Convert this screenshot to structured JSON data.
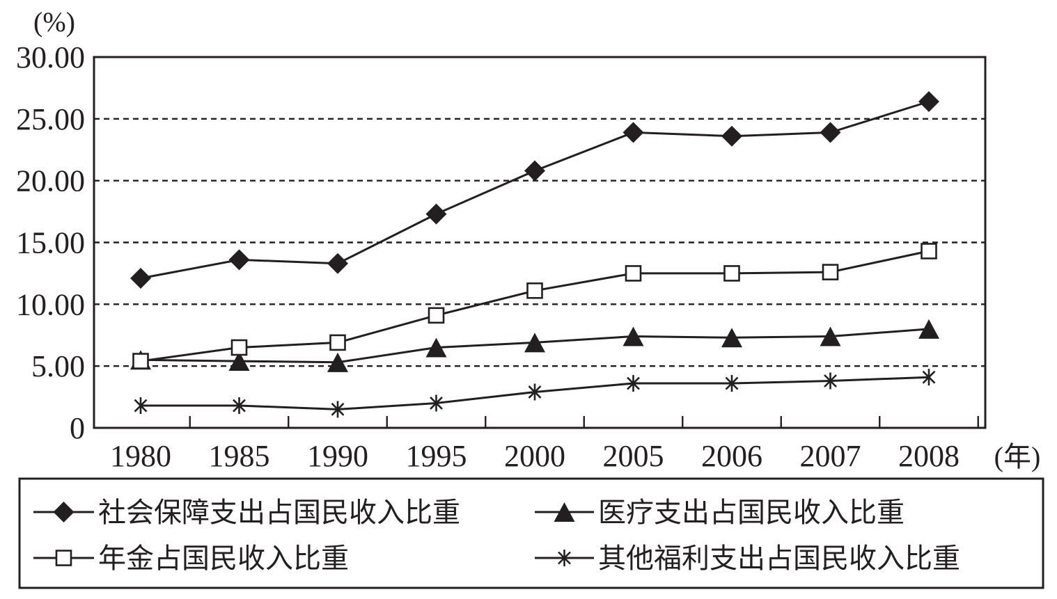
{
  "chart_data": {
    "type": "line",
    "y_unit_label": "(%)",
    "x_unit_label": "(年)",
    "categories": [
      "1980",
      "1985",
      "1990",
      "1995",
      "2000",
      "2005",
      "2006",
      "2007",
      "2008"
    ],
    "ylim": [
      0,
      30
    ],
    "y_ticks": [
      {
        "value": 0,
        "label": "0"
      },
      {
        "value": 5,
        "label": "5.00"
      },
      {
        "value": 10,
        "label": "10.00"
      },
      {
        "value": 15,
        "label": "15.00"
      },
      {
        "value": 20,
        "label": "20.00"
      },
      {
        "value": 25,
        "label": "25.00"
      },
      {
        "value": 30,
        "label": "30.00"
      }
    ],
    "grid": "horizontal dashed",
    "legend_position": "bottom",
    "series": [
      {
        "key": "social-security",
        "name": "社会保障支出占国民收入比重",
        "marker": "filled-diamond",
        "values": [
          12.1,
          13.6,
          13.3,
          17.3,
          20.8,
          23.9,
          23.6,
          23.9,
          26.4
        ]
      },
      {
        "key": "medical",
        "name": "医疗支出占国民收入比重",
        "marker": "filled-triangle",
        "values": [
          5.5,
          5.4,
          5.3,
          6.5,
          6.9,
          7.4,
          7.3,
          7.4,
          8.0
        ]
      },
      {
        "key": "pension",
        "name": "年金占国民收入比重",
        "marker": "open-square",
        "values": [
          5.4,
          6.5,
          6.9,
          9.1,
          11.1,
          12.5,
          12.5,
          12.6,
          14.3
        ]
      },
      {
        "key": "other-welfare",
        "name": "其他福利支出占国民收入比重",
        "marker": "asterisk",
        "values": [
          1.8,
          1.8,
          1.5,
          2.0,
          2.9,
          3.6,
          3.6,
          3.8,
          4.1
        ]
      }
    ]
  }
}
